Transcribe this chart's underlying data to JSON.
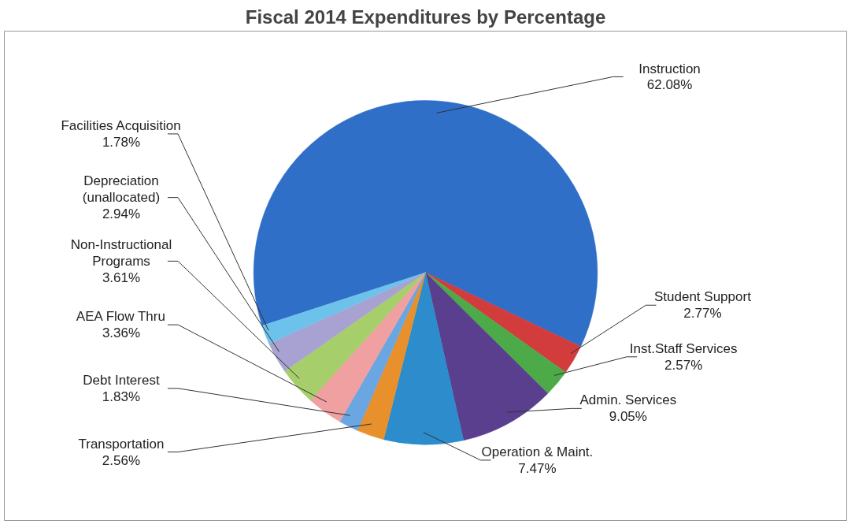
{
  "chart_data": {
    "type": "pie",
    "title": "Fiscal 2014 Expenditures by Percentage",
    "categories": [
      "Instruction",
      "Student Support",
      "Inst.Staff Services",
      "Admin. Services",
      "Operation & Maint.",
      "Transportation",
      "Debt Interest",
      "AEA Flow Thru",
      "Non-Instructional Programs",
      "Depreciation (unallocated)",
      "Facilities Acquisition"
    ],
    "values": [
      62.08,
      2.77,
      2.57,
      9.05,
      7.47,
      2.56,
      1.83,
      3.36,
      3.61,
      2.94,
      1.78
    ],
    "value_labels": [
      "62.08%",
      "2.77%",
      "2.57%",
      "9.05%",
      "7.47%",
      "2.56%",
      "1.83%",
      "3.36%",
      "3.61%",
      "2.94%",
      "1.78%"
    ],
    "colors": [
      "#2f6fc8",
      "#d23c3c",
      "#4caa48",
      "#5a3f8e",
      "#2c8ccc",
      "#e8902c",
      "#6aa6e2",
      "#f0a0a0",
      "#a6cf6c",
      "#a8a2d2",
      "#6cc2ea"
    ]
  }
}
